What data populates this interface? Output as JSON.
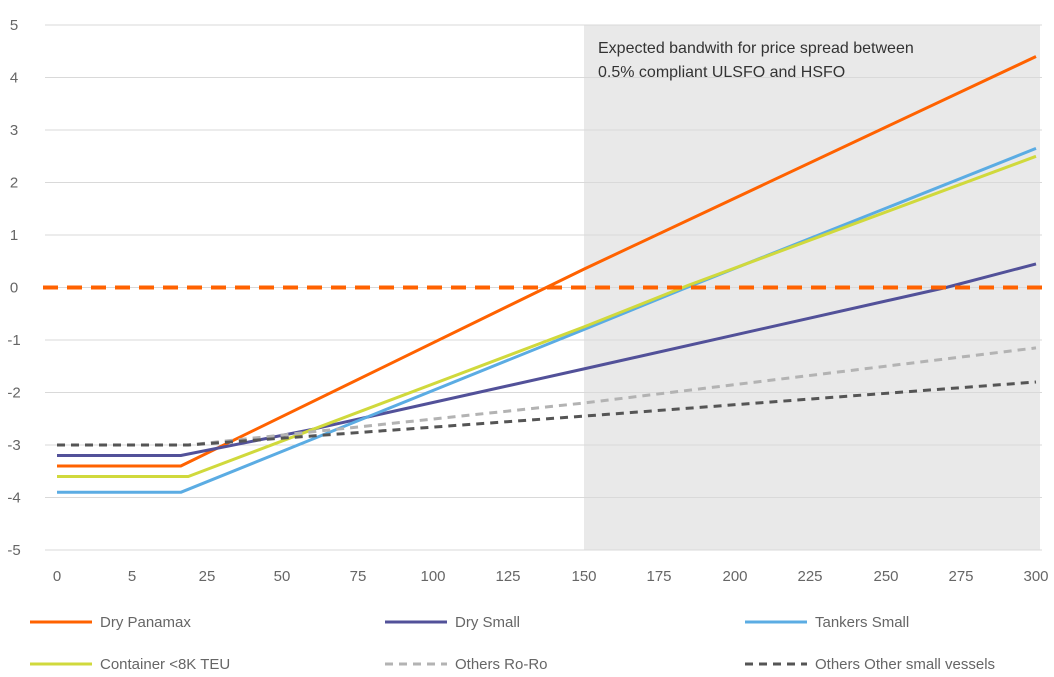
{
  "chart_data": {
    "type": "line",
    "title": "",
    "xlabel": "",
    "ylabel": "",
    "xlim": [
      0,
      300
    ],
    "ylim": [
      -5,
      5
    ],
    "x_ticks": [
      0,
      5,
      25,
      50,
      75,
      100,
      125,
      150,
      175,
      200,
      225,
      250,
      275,
      300
    ],
    "x_tick_labels": [
      "0",
      "5",
      "25",
      "50",
      "75",
      "100",
      "125",
      "150",
      "175",
      "200",
      "225",
      "250",
      "275",
      "300"
    ],
    "y_ticks": [
      -5,
      -4,
      -3,
      -2,
      -1,
      0,
      1,
      2,
      3,
      4,
      5
    ],
    "y_tick_labels": [
      "-5",
      "-4",
      "-3",
      "-2",
      "-1",
      "0",
      "1",
      "2",
      "3",
      "4",
      "5"
    ],
    "grid": "horizontal",
    "legend_position": "bottom",
    "shaded_region": {
      "x_start": 150,
      "x_end": 300,
      "color": "#e9e9e9",
      "label_lines": [
        "Expected bandwith for price spread between",
        "0.5% compliant ULSFO and HSFO"
      ]
    },
    "reference_line": {
      "y": 0,
      "color": "#ff6200",
      "style": "dashed"
    },
    "series": [
      {
        "name": "Dry Panamax",
        "color": "#ff6200",
        "style": "solid",
        "points": [
          [
            0,
            -3.4
          ],
          [
            18,
            -3.4
          ],
          [
            150,
            0.35
          ],
          [
            300,
            4.4
          ]
        ]
      },
      {
        "name": "Dry Small",
        "color": "#525199",
        "style": "solid",
        "points": [
          [
            0,
            -3.2
          ],
          [
            18,
            -3.2
          ],
          [
            60,
            -2.7
          ],
          [
            150,
            -1.55
          ],
          [
            270,
            0.0
          ],
          [
            300,
            0.45
          ]
        ]
      },
      {
        "name": "Tankers Small",
        "color": "#5bace3",
        "style": "solid",
        "points": [
          [
            0,
            -3.9
          ],
          [
            18,
            -3.9
          ],
          [
            150,
            -0.8
          ],
          [
            182,
            -0.05
          ],
          [
            300,
            2.65
          ]
        ]
      },
      {
        "name": "Container <8K TEU",
        "color": "#d0d93c",
        "style": "solid",
        "points": [
          [
            0,
            -3.6
          ],
          [
            20,
            -3.6
          ],
          [
            150,
            -0.75
          ],
          [
            185,
            0.05
          ],
          [
            300,
            2.5
          ]
        ]
      },
      {
        "name": "Others Ro-Ro",
        "color": "#b3b3b3",
        "style": "dashed",
        "points": [
          [
            0,
            -3.0
          ],
          [
            20,
            -3.0
          ],
          [
            150,
            -2.2
          ],
          [
            300,
            -1.15
          ]
        ]
      },
      {
        "name": "Others Other small vessels",
        "color": "#555555",
        "style": "dashed",
        "points": [
          [
            0,
            -3.0
          ],
          [
            20,
            -3.0
          ],
          [
            150,
            -2.45
          ],
          [
            300,
            -1.8
          ]
        ]
      }
    ]
  }
}
